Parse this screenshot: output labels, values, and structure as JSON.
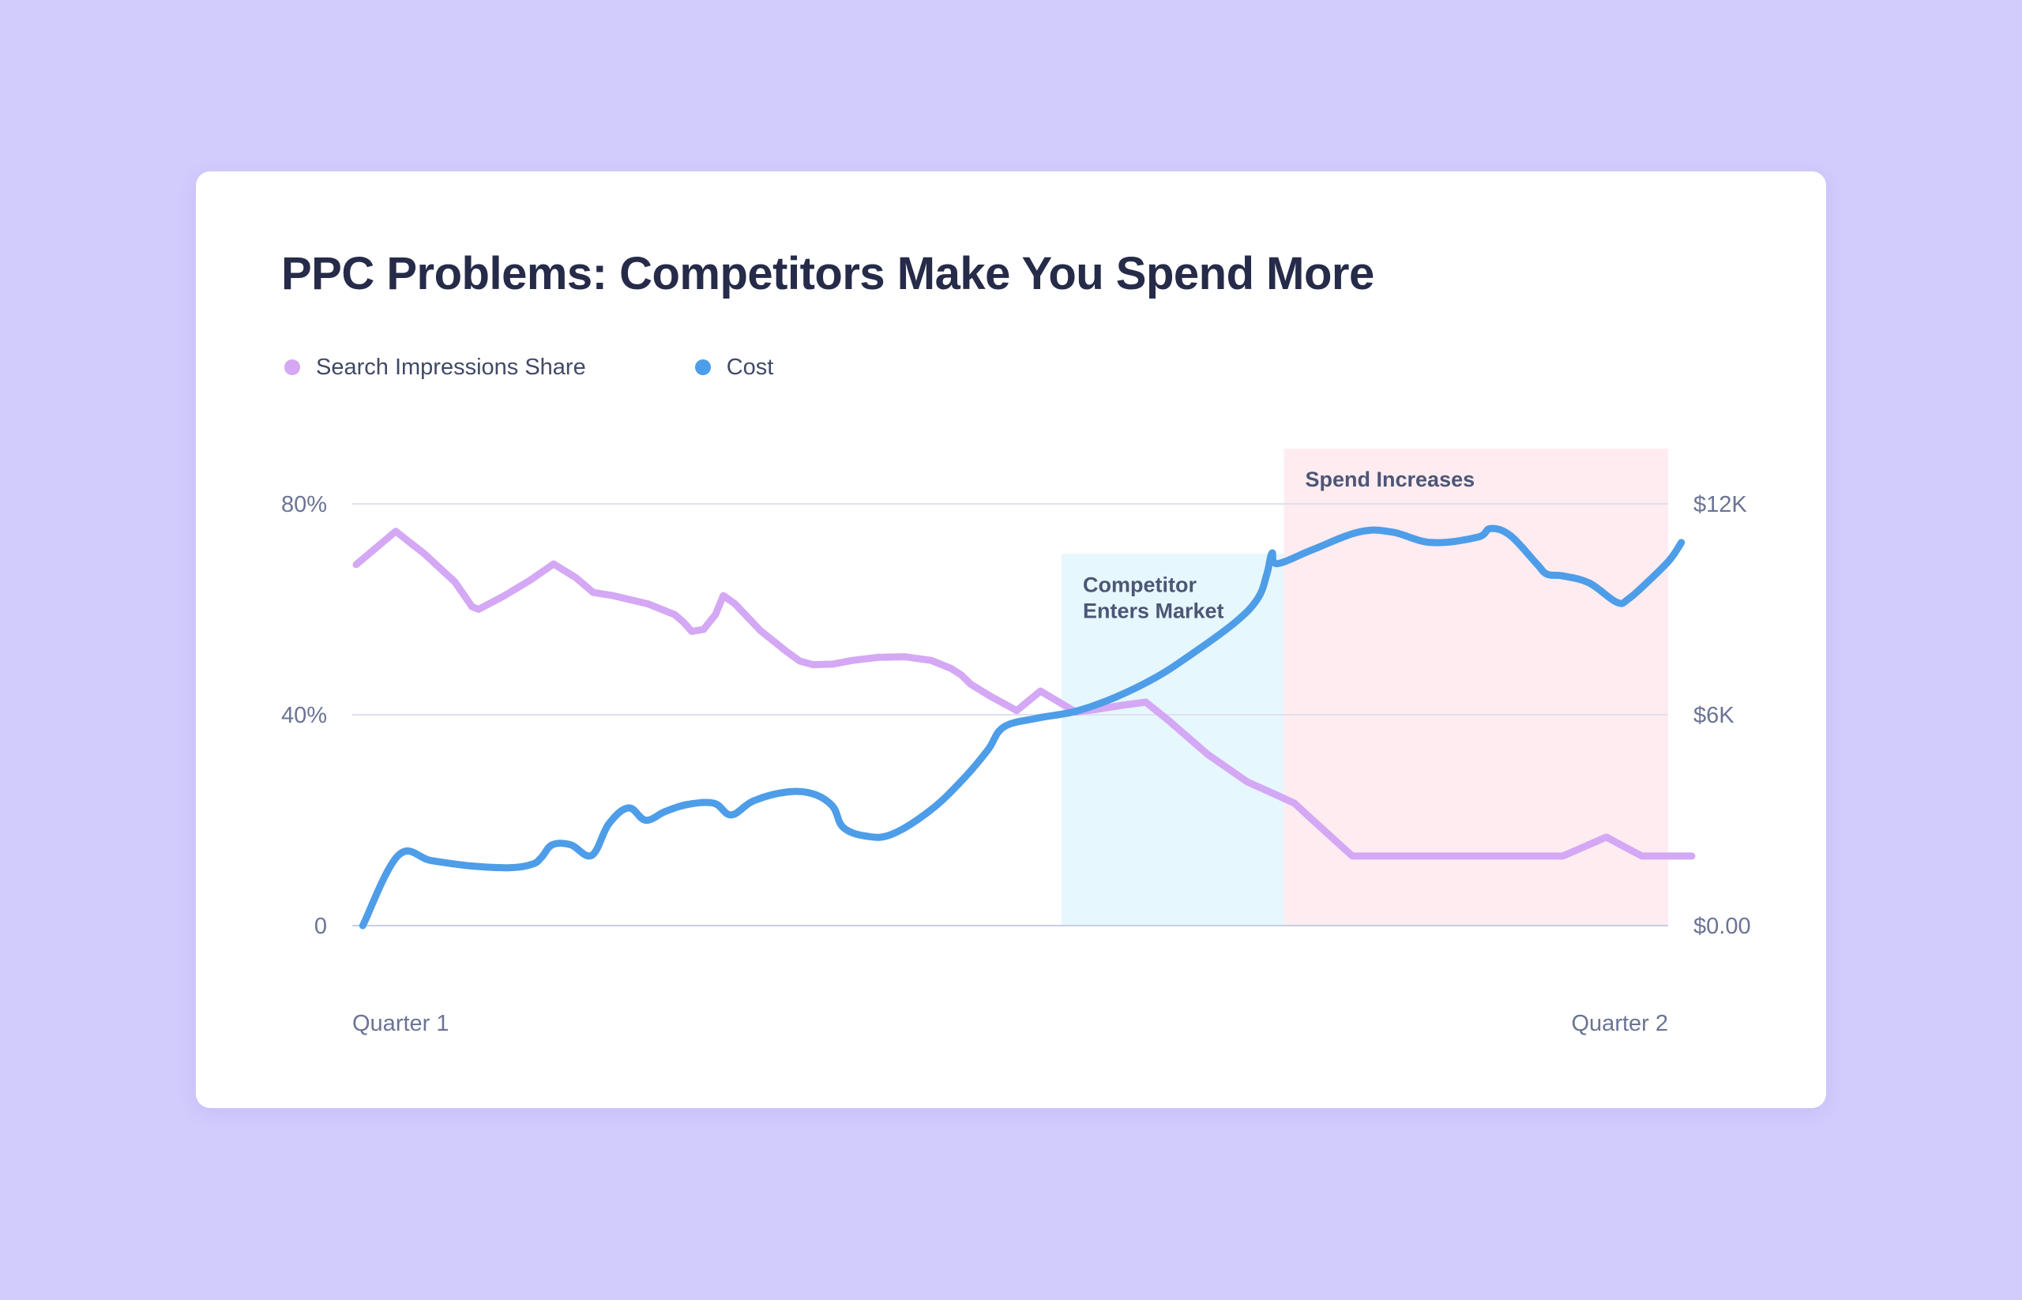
{
  "chart_data": {
    "type": "line",
    "title": "PPC Problems: Competitors Make You Spend More",
    "colors": {
      "background": "#d2ccfc",
      "card": "#ffffff",
      "impressions": "#d4a8f5",
      "cost": "#4e9de8",
      "competitor_band": "#e6f7fd",
      "spend_band": "#ffecf0",
      "grid": "#dde1ee"
    },
    "legend": {
      "position": "top-left",
      "items": [
        {
          "label": "Search Impressions Share",
          "color": "#d4a8f5"
        },
        {
          "label": "Cost",
          "color": "#4e9de8"
        }
      ]
    },
    "x_axis": {
      "range": [
        0,
        100
      ],
      "tick_labels": [
        {
          "value": 0,
          "label": "Quarter 1"
        },
        {
          "value": 100,
          "label": "Quarter 2"
        }
      ]
    },
    "y_axis_left": {
      "range": [
        0,
        80
      ],
      "ticks": [
        {
          "value": 0,
          "label": "0"
        },
        {
          "value": 40,
          "label": "40%"
        },
        {
          "value": 80,
          "label": "80%"
        }
      ]
    },
    "y_axis_right": {
      "range": [
        0,
        12000
      ],
      "ticks": [
        {
          "value": 0,
          "label": "$0.00"
        },
        {
          "value": 6000,
          "label": "$6K"
        },
        {
          "value": 12000,
          "label": "$12K"
        }
      ]
    },
    "grid": true,
    "annotations": [
      {
        "label_lines": [
          "Competitor",
          "Enters Market"
        ],
        "x_start": 53.9,
        "x_end": 70.8,
        "y_top": 70.5,
        "color": "#e6f7fd"
      },
      {
        "label_lines": [
          "Spend Increases"
        ],
        "x_start": 70.8,
        "x_end": 100,
        "y_top": 90.5,
        "color": "#ffecf0"
      }
    ],
    "series": [
      {
        "name": "Search Impressions Share",
        "axis": "left",
        "color": "#d4a8f5",
        "smooth": false,
        "points": [
          [
            0.3,
            68.5
          ],
          [
            3.3,
            74.8
          ],
          [
            5.5,
            70.5
          ],
          [
            7.8,
            65.2
          ],
          [
            9.1,
            60.5
          ],
          [
            9.6,
            60.0
          ],
          [
            11.5,
            62.5
          ],
          [
            13.5,
            65.5
          ],
          [
            15.3,
            68.6
          ],
          [
            17.0,
            66.0
          ],
          [
            18.3,
            63.2
          ],
          [
            19.8,
            62.6
          ],
          [
            22.5,
            61.0
          ],
          [
            24.5,
            59.0
          ],
          [
            25.2,
            57.5
          ],
          [
            25.8,
            55.8
          ],
          [
            26.7,
            56.2
          ],
          [
            27.6,
            59.0
          ],
          [
            28.2,
            62.6
          ],
          [
            29.1,
            61.0
          ],
          [
            31.0,
            56.0
          ],
          [
            33.0,
            52.0
          ],
          [
            34.0,
            50.2
          ],
          [
            35.0,
            49.5
          ],
          [
            36.5,
            49.6
          ],
          [
            38.0,
            50.3
          ],
          [
            40.0,
            50.9
          ],
          [
            42.0,
            51.0
          ],
          [
            44.0,
            50.3
          ],
          [
            45.5,
            48.8
          ],
          [
            46.3,
            47.5
          ],
          [
            47.0,
            45.8
          ],
          [
            48.5,
            43.5
          ],
          [
            50.5,
            40.8
          ],
          [
            52.3,
            44.5
          ],
          [
            55.0,
            40.5
          ],
          [
            56.5,
            41.0
          ],
          [
            58.5,
            41.8
          ],
          [
            60.3,
            42.4
          ],
          [
            62.0,
            39.0
          ],
          [
            65.0,
            32.5
          ],
          [
            68.0,
            27.3
          ],
          [
            70.5,
            24.5
          ],
          [
            71.6,
            23.2
          ],
          [
            73.0,
            20.0
          ],
          [
            76.0,
            13.2
          ],
          [
            79.0,
            13.2
          ],
          [
            83.0,
            13.2
          ],
          [
            87.5,
            13.2
          ],
          [
            92.0,
            13.2
          ],
          [
            95.3,
            16.8
          ],
          [
            98.0,
            13.2
          ],
          [
            101.8,
            13.2
          ]
        ]
      },
      {
        "name": "Cost",
        "axis": "right",
        "color": "#4e9de8",
        "smooth": true,
        "points": [
          [
            0.8,
            0
          ],
          [
            3.5,
            2000
          ],
          [
            6.0,
            1850
          ],
          [
            9.0,
            1700
          ],
          [
            12.0,
            1650
          ],
          [
            13.7,
            1750
          ],
          [
            14.4,
            1950
          ],
          [
            15.2,
            2300
          ],
          [
            16.6,
            2300
          ],
          [
            18.2,
            2000
          ],
          [
            19.5,
            2900
          ],
          [
            21.0,
            3350
          ],
          [
            22.3,
            3000
          ],
          [
            23.8,
            3250
          ],
          [
            25.5,
            3450
          ],
          [
            27.5,
            3480
          ],
          [
            28.8,
            3150
          ],
          [
            30.5,
            3550
          ],
          [
            33.0,
            3800
          ],
          [
            35.0,
            3750
          ],
          [
            36.5,
            3400
          ],
          [
            37.3,
            2800
          ],
          [
            39.0,
            2550
          ],
          [
            41.0,
            2600
          ],
          [
            44.0,
            3300
          ],
          [
            46.5,
            4200
          ],
          [
            48.3,
            5000
          ],
          [
            49.5,
            5650
          ],
          [
            52.0,
            5900
          ],
          [
            55.0,
            6100
          ],
          [
            58.0,
            6500
          ],
          [
            61.0,
            7050
          ],
          [
            63.5,
            7650
          ],
          [
            67.0,
            8600
          ],
          [
            68.8,
            9300
          ],
          [
            69.5,
            10000
          ],
          [
            69.9,
            10600
          ],
          [
            70.3,
            10300
          ],
          [
            73.0,
            10700
          ],
          [
            76.5,
            11200
          ],
          [
            79.0,
            11200
          ],
          [
            82.0,
            10900
          ],
          [
            85.5,
            11050
          ],
          [
            86.5,
            11300
          ],
          [
            88.0,
            11100
          ],
          [
            90.0,
            10300
          ],
          [
            90.8,
            10000
          ],
          [
            92.0,
            9950
          ],
          [
            94.0,
            9750
          ],
          [
            96.1,
            9200
          ],
          [
            97.0,
            9300
          ],
          [
            98.5,
            9800
          ],
          [
            100.1,
            10400
          ],
          [
            101.0,
            10900
          ]
        ]
      }
    ]
  }
}
